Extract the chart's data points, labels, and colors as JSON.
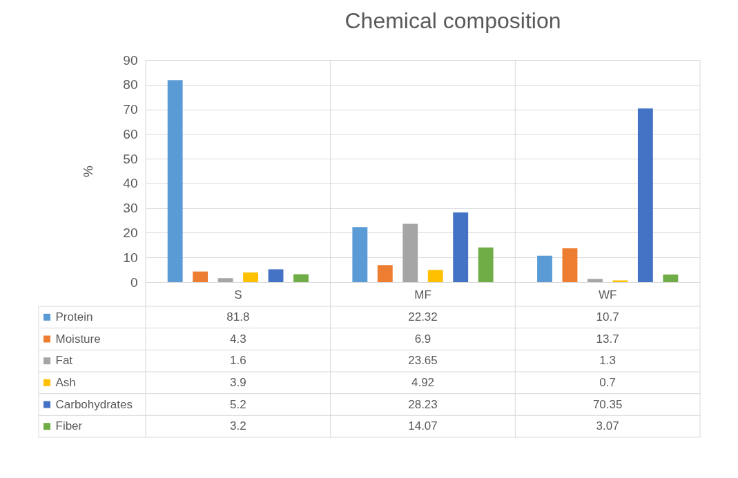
{
  "chart_data": {
    "type": "bar",
    "title": "Chemical composition",
    "ylabel": "%",
    "categories": [
      "S",
      "MF",
      "WF"
    ],
    "ylim": [
      0,
      90
    ],
    "yticks": [
      0,
      10,
      20,
      30,
      40,
      50,
      60,
      70,
      80,
      90
    ],
    "grid": true,
    "legend": "bottom",
    "data_labels": true,
    "series": [
      {
        "name": "Protein",
        "color": "#5b9bd5",
        "values": [
          81.8,
          22.32,
          10.7
        ]
      },
      {
        "name": "Moisture",
        "color": "#ed7d31",
        "values": [
          4.3,
          6.9,
          13.7
        ]
      },
      {
        "name": "Fat",
        "color": "#a5a5a5",
        "values": [
          1.6,
          23.65,
          1.3
        ]
      },
      {
        "name": "Ash",
        "color": "#ffc000",
        "values": [
          3.9,
          4.92,
          0.7
        ]
      },
      {
        "name": "Carbohydrates",
        "color": "#4472c4",
        "values": [
          5.2,
          28.23,
          70.35
        ]
      },
      {
        "name": "Fiber",
        "color": "#70ad47",
        "values": [
          3.2,
          14.07,
          3.07
        ]
      }
    ]
  }
}
